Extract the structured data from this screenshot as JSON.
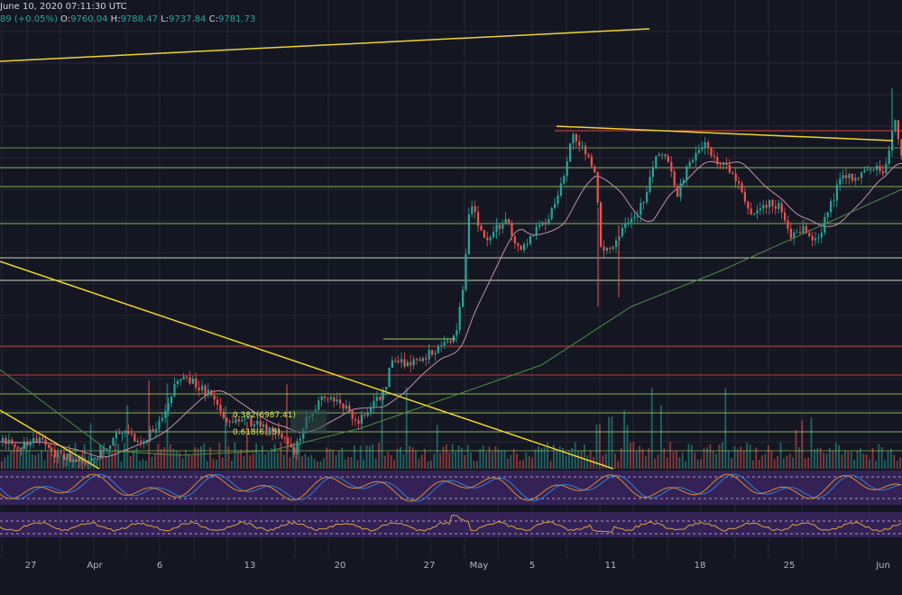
{
  "header": {
    "line1": "June 10, 2020 07:11:30 UTC",
    "change": "89 (+0.05%)",
    "open_label": "O:",
    "open": "9760.04",
    "high_label": "H:",
    "high": "9788.47",
    "low_label": "L:",
    "low": "9737.84",
    "close_label": "C:",
    "close": "9781.73"
  },
  "colors": {
    "background": "#141722",
    "grid": "#262a36",
    "up": "#26a69a",
    "down": "#ef5350",
    "trendline": "#f0d42b",
    "red_level": "#e0403a",
    "green_level": "#9ccc65",
    "white_level": "#e8f5d0",
    "ma_pink": "#d79abb",
    "ma_green": "#4e8a43",
    "stoch_k": "#2f7fd6",
    "stoch_d": "#d98b33",
    "osc_panel": "#3a2560",
    "osc_line": "#d9a040"
  },
  "chart_data": {
    "type": "candlestick",
    "title": "",
    "x_ticks": [
      "27",
      "Apr",
      "6",
      "13",
      "20",
      "27",
      "May",
      "5",
      "11",
      "18",
      "25",
      "Jun"
    ],
    "date_range": [
      "2020-03-20",
      "2020-06-10"
    ],
    "last_ohlc": {
      "open": 9760.04,
      "high": 9788.47,
      "low": 9737.84,
      "close": 9781.73
    },
    "fib_labels": [
      "0.382(6987.41)",
      "0.618(6...5)"
    ],
    "panels": [
      "price",
      "volume",
      "stoch-rsi",
      "oscillator"
    ],
    "grid": true
  }
}
